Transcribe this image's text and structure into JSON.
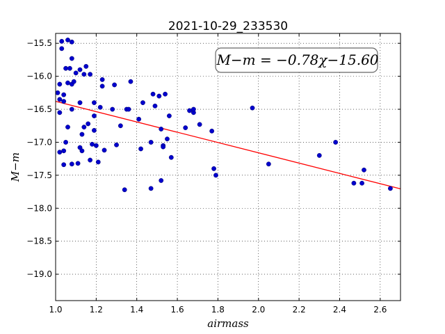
{
  "chart_data": {
    "type": "scatter",
    "title": "2021-10-29_233530",
    "xlabel": "airmass",
    "ylabel": "M−m",
    "xlim": [
      1.0,
      2.7
    ],
    "ylim": [
      -19.4,
      -15.35
    ],
    "inverted_y": true,
    "grid": true,
    "grid_style": "dotted",
    "annotation": "M−m = −0.78χ−15.60",
    "annotation_position": "top-right",
    "x_ticks": [
      1.0,
      1.2,
      1.4,
      1.6,
      1.8,
      2.0,
      2.2,
      2.4,
      2.6
    ],
    "x_tick_labels": [
      "1.0",
      "1.2",
      "1.4",
      "1.6",
      "1.8",
      "2.0",
      "2.2",
      "2.4",
      "2.6"
    ],
    "y_ticks": [
      -15.5,
      -16.0,
      -16.5,
      -17.0,
      -17.5,
      -18.0,
      -18.5,
      -19.0
    ],
    "y_tick_labels": [
      "−15.5",
      "−16.0",
      "−16.5",
      "−17.0",
      "−17.5",
      "−18.0",
      "−18.5",
      "−19.0"
    ],
    "series": [
      {
        "type": "scatter",
        "color": "#0000cc",
        "points": [
          [
            1.01,
            -16.25
          ],
          [
            1.02,
            -16.12
          ],
          [
            1.02,
            -16.35
          ],
          [
            1.02,
            -16.55
          ],
          [
            1.02,
            -17.15
          ],
          [
            1.03,
            -15.47
          ],
          [
            1.03,
            -15.58
          ],
          [
            1.04,
            -16.28
          ],
          [
            1.04,
            -16.38
          ],
          [
            1.04,
            -17.13
          ],
          [
            1.04,
            -17.34
          ],
          [
            1.05,
            -15.88
          ],
          [
            1.05,
            -17.0
          ],
          [
            1.06,
            -15.45
          ],
          [
            1.06,
            -16.1
          ],
          [
            1.06,
            -16.77
          ],
          [
            1.07,
            -15.88
          ],
          [
            1.08,
            -15.48
          ],
          [
            1.08,
            -15.73
          ],
          [
            1.08,
            -16.12
          ],
          [
            1.08,
            -16.5
          ],
          [
            1.08,
            -17.33
          ],
          [
            1.09,
            -16.08
          ],
          [
            1.1,
            -15.95
          ],
          [
            1.11,
            -17.32
          ],
          [
            1.12,
            -15.9
          ],
          [
            1.12,
            -16.4
          ],
          [
            1.12,
            -17.08
          ],
          [
            1.13,
            -16.88
          ],
          [
            1.13,
            -17.13
          ],
          [
            1.14,
            -15.97
          ],
          [
            1.14,
            -16.77
          ],
          [
            1.15,
            -15.85
          ],
          [
            1.16,
            -16.72
          ],
          [
            1.17,
            -15.97
          ],
          [
            1.17,
            -17.27
          ],
          [
            1.18,
            -17.03
          ],
          [
            1.19,
            -16.4
          ],
          [
            1.19,
            -16.6
          ],
          [
            1.19,
            -16.82
          ],
          [
            1.2,
            -17.05
          ],
          [
            1.21,
            -17.3
          ],
          [
            1.22,
            -16.47
          ],
          [
            1.23,
            -16.05
          ],
          [
            1.23,
            -16.15
          ],
          [
            1.24,
            -17.12
          ],
          [
            1.28,
            -16.5
          ],
          [
            1.29,
            -16.13
          ],
          [
            1.3,
            -17.04
          ],
          [
            1.32,
            -16.75
          ],
          [
            1.34,
            -17.72
          ],
          [
            1.35,
            -16.5
          ],
          [
            1.36,
            -16.5
          ],
          [
            1.37,
            -16.08
          ],
          [
            1.41,
            -16.65
          ],
          [
            1.42,
            -17.1
          ],
          [
            1.43,
            -16.4
          ],
          [
            1.47,
            -17.0
          ],
          [
            1.47,
            -17.7
          ],
          [
            1.48,
            -16.27
          ],
          [
            1.49,
            -16.45
          ],
          [
            1.51,
            -16.3
          ],
          [
            1.52,
            -16.8
          ],
          [
            1.52,
            -17.58
          ],
          [
            1.53,
            -17.05
          ],
          [
            1.53,
            -17.07
          ],
          [
            1.54,
            -16.27
          ],
          [
            1.55,
            -16.95
          ],
          [
            1.56,
            -16.6
          ],
          [
            1.57,
            -17.23
          ],
          [
            1.64,
            -16.78
          ],
          [
            1.66,
            -16.52
          ],
          [
            1.68,
            -16.55
          ],
          [
            1.68,
            -16.5
          ],
          [
            1.71,
            -16.73
          ],
          [
            1.77,
            -16.83
          ],
          [
            1.78,
            -17.4
          ],
          [
            1.79,
            -17.5
          ],
          [
            1.97,
            -16.48
          ],
          [
            2.05,
            -17.33
          ],
          [
            2.3,
            -17.2
          ],
          [
            2.38,
            -17.0
          ],
          [
            2.47,
            -17.62
          ],
          [
            2.51,
            -17.62
          ],
          [
            2.52,
            -17.42
          ],
          [
            2.65,
            -17.7
          ]
        ]
      },
      {
        "type": "line",
        "color": "#ff0000",
        "slope": -0.78,
        "intercept": -15.6,
        "x_range": [
          1.0,
          2.7
        ]
      }
    ]
  }
}
